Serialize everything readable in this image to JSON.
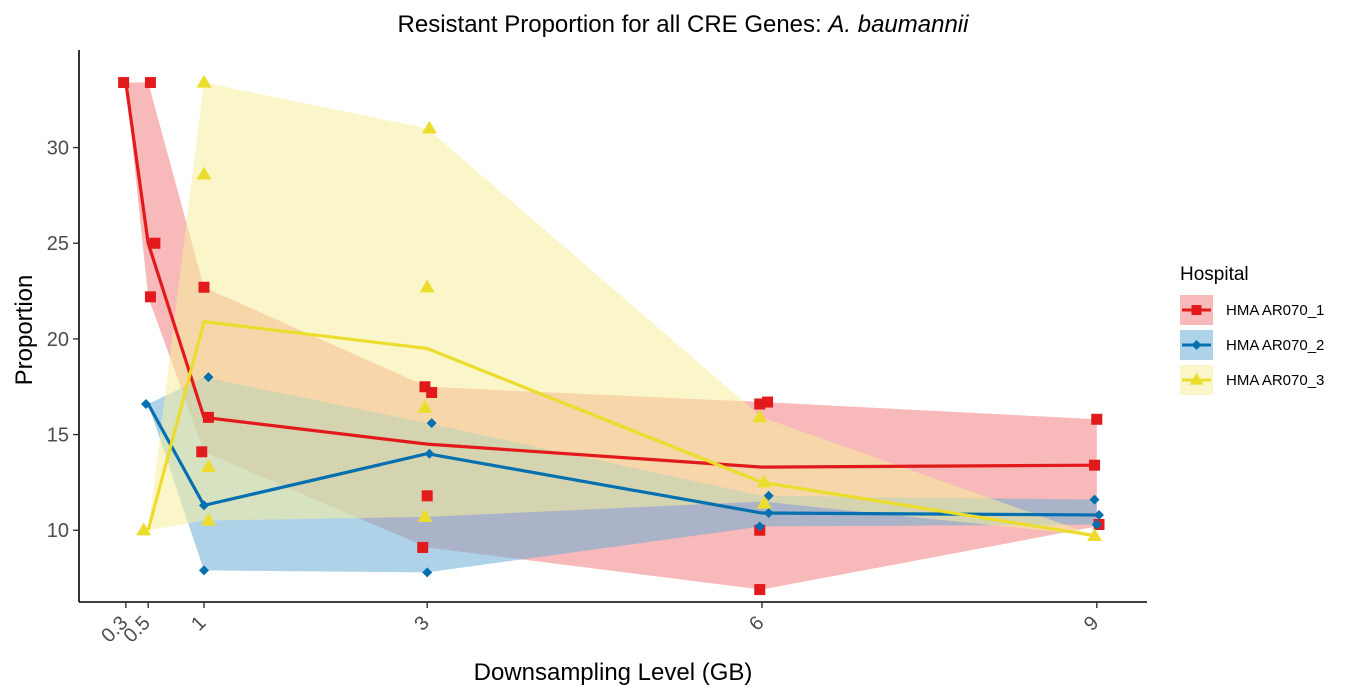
{
  "chart_data": {
    "type": "line",
    "title": "Resistant Proportion for all CRE Genes: ",
    "title_species": "A. baumannii",
    "xlabel": "Downsampling Level (GB)",
    "ylabel": "Proportion",
    "x_ticks": [
      0.3,
      0.5,
      1,
      3,
      6,
      9
    ],
    "x_tick_labels": [
      "0.3",
      "0.5",
      "1",
      "3",
      "6",
      "9"
    ],
    "y_ticks": [
      10,
      15,
      20,
      25,
      30
    ],
    "y_tick_labels": [
      "10",
      "15",
      "20",
      "25",
      "30"
    ],
    "xlim": [
      -0.12,
      9.45
    ],
    "ylim": [
      6.25,
      35.1
    ],
    "grid": false,
    "legend": {
      "title": "Hospital",
      "position": "right"
    },
    "series": [
      {
        "name": "HMA AR070_1",
        "color": "#e31a1c",
        "fill": "#f08080",
        "marker": "square",
        "x": [
          0.3,
          0.5,
          1,
          3,
          6,
          9
        ],
        "mean": [
          33.4,
          25.0,
          15.9,
          14.5,
          13.3,
          13.4
        ],
        "ribbon_min": [
          33.4,
          22.2,
          14.1,
          9.1,
          6.9,
          10.2
        ],
        "ribbon_max": [
          33.4,
          33.4,
          22.7,
          17.5,
          16.7,
          15.8
        ],
        "points": [
          [
            0.28,
            33.4
          ],
          [
            0.52,
            33.4
          ],
          [
            0.56,
            25.0
          ],
          [
            0.52,
            22.2
          ],
          [
            1.0,
            22.7
          ],
          [
            1.04,
            15.9
          ],
          [
            0.98,
            14.1
          ],
          [
            2.98,
            17.5
          ],
          [
            3.04,
            17.2
          ],
          [
            3.0,
            11.8
          ],
          [
            2.96,
            9.1
          ],
          [
            5.98,
            16.6
          ],
          [
            6.05,
            16.7
          ],
          [
            5.98,
            10.0
          ],
          [
            5.98,
            6.9
          ],
          [
            9.0,
            15.8
          ],
          [
            8.98,
            13.4
          ],
          [
            9.02,
            10.3
          ]
        ]
      },
      {
        "name": "HMA AR070_2",
        "color": "#0570b0",
        "fill": "#6baed6",
        "marker": "diamond",
        "x": [
          0.5,
          1,
          3,
          6,
          9
        ],
        "mean": [
          16.6,
          11.3,
          14.0,
          10.9,
          10.8
        ],
        "ribbon_min": [
          16.6,
          7.9,
          7.8,
          10.2,
          10.3
        ],
        "ribbon_max": [
          16.6,
          18.0,
          15.6,
          11.8,
          11.6
        ],
        "points": [
          [
            0.48,
            16.6
          ],
          [
            1.04,
            18.0
          ],
          [
            1.0,
            11.3
          ],
          [
            1.0,
            7.9
          ],
          [
            3.04,
            15.6
          ],
          [
            3.02,
            14.0
          ],
          [
            3.0,
            7.8
          ],
          [
            6.06,
            11.8
          ],
          [
            6.06,
            10.9
          ],
          [
            5.98,
            10.2
          ],
          [
            8.98,
            11.6
          ],
          [
            9.02,
            10.8
          ],
          [
            9.0,
            10.3
          ]
        ]
      },
      {
        "name": "HMA AR070_3",
        "color": "#ecdd2c",
        "fill": "#f7ef9f",
        "marker": "triangle",
        "x": [
          0.5,
          1,
          3,
          6,
          9
        ],
        "mean": [
          10.0,
          20.9,
          19.5,
          12.5,
          9.7
        ],
        "ribbon_min": [
          10.0,
          10.5,
          10.7,
          11.5,
          9.7
        ],
        "ribbon_max": [
          10.0,
          33.4,
          31.0,
          15.9,
          9.7
        ],
        "points": [
          [
            0.46,
            10.0
          ],
          [
            1.0,
            33.4
          ],
          [
            1.0,
            28.6
          ],
          [
            1.04,
            13.3
          ],
          [
            1.04,
            10.5
          ],
          [
            3.02,
            31.0
          ],
          [
            3.0,
            22.7
          ],
          [
            2.98,
            16.4
          ],
          [
            2.98,
            10.7
          ],
          [
            5.98,
            15.9
          ],
          [
            6.02,
            12.5
          ],
          [
            6.02,
            11.4
          ],
          [
            8.98,
            9.7
          ]
        ]
      }
    ]
  }
}
